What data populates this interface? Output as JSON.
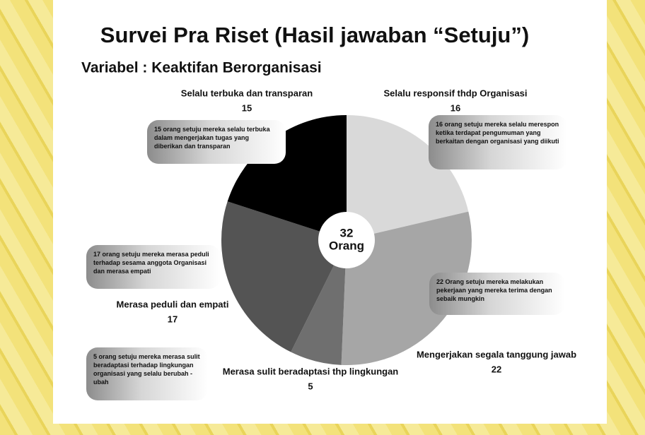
{
  "chart_data": {
    "type": "pie",
    "title": "Survei Pra Riset (Hasil jawaban “Setuju”)",
    "subtitle": "Variabel : Keaktifan Berorganisasi",
    "categories": [
      "Selalu responsif thdp Organisasi",
      "Mengerjakan segala tanggung jawab",
      "Merasa sulit beradaptasi thp lingkungan",
      "Merasa peduli dan empati",
      "Selalu terbuka dan transparan"
    ],
    "values": [
      16,
      22,
      5,
      17,
      15
    ],
    "colors": [
      "#d9d9d9",
      "#a6a6a6",
      "#6f6f6f",
      "#545454",
      "#000000"
    ],
    "descriptions": [
      "16 orang setuju mereka selalu merespon ketika terdapat pengumuman yang berkaitan dengan organisasi yang diikuti",
      "22 Orang setuju mereka melakukan pekerjaan yang mereka terima dengan sebaik mungkin",
      "5 orang setuju mereka merasa sulit beradaptasi terhadap lingkungan organisasi yang selalu berubah - ubah",
      "17 orang setuju mereka merasa peduli terhadap sesama anggota Organisasi dan merasa empati",
      "15 orang setuju mereka selalu terbuka dalam mengerjakan tugas yang diberikan dan transparan"
    ],
    "center_value": 32,
    "center_unit": "Orang"
  }
}
